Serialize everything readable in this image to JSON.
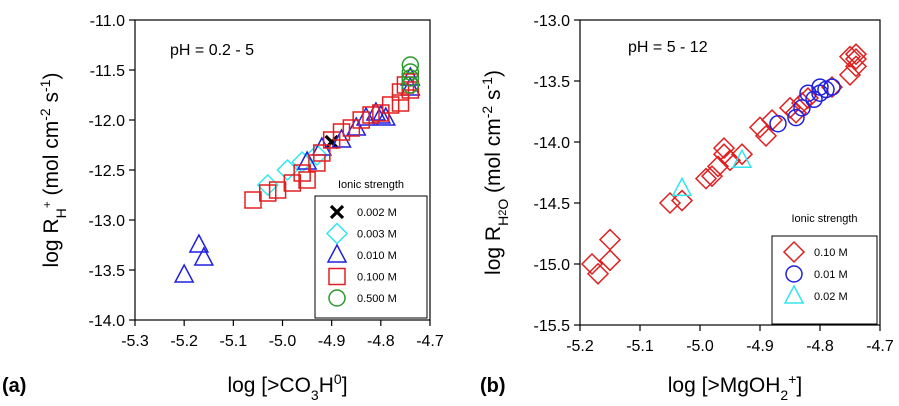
{
  "chart_data": [
    {
      "type": "scatter",
      "panel_label": "(a)",
      "annotation": "pH = 0.2 - 5",
      "xlabel": {
        "pre": "log [>CO",
        "sub1": "3",
        "mid": "H",
        "sup1": "0",
        "post": "]"
      },
      "ylabel": {
        "pre": "log R",
        "sub1": "H",
        "sup1": "+",
        "mid": " (mol cm",
        "sup2": "-2",
        "mid2": " s",
        "sup3": "-1",
        "post": ")"
      },
      "xlim": [
        -5.3,
        -4.7
      ],
      "ylim": [
        -14.0,
        -11.0
      ],
      "xticks": [
        "-5.3",
        "-5.2",
        "-5.1",
        "-5.0",
        "-4.9",
        "-4.8",
        "-4.7"
      ],
      "yticks": [
        "-14.0",
        "-13.5",
        "-13.0",
        "-12.5",
        "-12.0",
        "-11.5",
        "-11.0"
      ],
      "legend_title": "Ionic strength",
      "legend_position": "bottom-right",
      "series": [
        {
          "name": "0.002 M",
          "marker": "x",
          "color": "#000000",
          "points": [
            [
              -4.9,
              -12.22
            ]
          ]
        },
        {
          "name": "0.003 M",
          "marker": "diamond",
          "color": "#33e5ee",
          "points": [
            [
              -5.03,
              -12.65
            ],
            [
              -4.99,
              -12.5
            ],
            [
              -4.96,
              -12.42
            ],
            [
              -4.93,
              -12.35
            ]
          ]
        },
        {
          "name": "0.010 M",
          "marker": "triangle",
          "color": "#2020e0",
          "points": [
            [
              -5.2,
              -13.55
            ],
            [
              -5.17,
              -13.25
            ],
            [
              -5.16,
              -13.38
            ],
            [
              -4.95,
              -12.42
            ],
            [
              -4.92,
              -12.28
            ],
            [
              -4.88,
              -12.2
            ],
            [
              -4.85,
              -12.08
            ],
            [
              -4.83,
              -11.98
            ],
            [
              -4.81,
              -11.93
            ],
            [
              -4.8,
              -11.96
            ],
            [
              -4.79,
              -11.98
            ],
            [
              -4.74,
              -11.58
            ],
            [
              -4.74,
              -11.68
            ]
          ]
        },
        {
          "name": "0.100 M",
          "marker": "square",
          "color": "#e02020",
          "points": [
            [
              -5.06,
              -12.8
            ],
            [
              -5.03,
              -12.73
            ],
            [
              -5.01,
              -12.7
            ],
            [
              -4.98,
              -12.63
            ],
            [
              -4.96,
              -12.53
            ],
            [
              -4.95,
              -12.6
            ],
            [
              -4.93,
              -12.43
            ],
            [
              -4.92,
              -12.33
            ],
            [
              -4.9,
              -12.2
            ],
            [
              -4.88,
              -12.12
            ],
            [
              -4.86,
              -12.08
            ],
            [
              -4.84,
              -12.0
            ],
            [
              -4.82,
              -11.95
            ],
            [
              -4.8,
              -11.93
            ],
            [
              -4.78,
              -11.85
            ],
            [
              -4.76,
              -11.83
            ],
            [
              -4.76,
              -11.72
            ],
            [
              -4.75,
              -11.65
            ],
            [
              -4.74,
              -11.7
            ],
            [
              -4.74,
              -11.62
            ]
          ]
        },
        {
          "name": "0.500 M",
          "marker": "circle",
          "color": "#2a9a2a",
          "points": [
            [
              -4.74,
              -11.45
            ],
            [
              -4.74,
              -11.52
            ],
            [
              -4.74,
              -11.58
            ],
            [
              -4.74,
              -11.65
            ]
          ]
        }
      ]
    },
    {
      "type": "scatter",
      "panel_label": "(b)",
      "annotation": "pH = 5 - 12",
      "xlabel": {
        "pre": "log [>MgOH",
        "sub1": "2",
        "sup1": "+",
        "post": "]"
      },
      "ylabel": {
        "pre": "log R",
        "sub1": "H",
        "sub2": "2",
        "sub3": "O",
        "mid": " (mol cm",
        "sup2": "-2",
        "mid2": " s",
        "sup3": "-1",
        "post": ")"
      },
      "xlim": [
        -5.2,
        -4.7
      ],
      "ylim": [
        -15.5,
        -13.0
      ],
      "xticks": [
        "-5.2",
        "-5.1",
        "-5.0",
        "-4.9",
        "-4.8",
        "-4.7"
      ],
      "yticks": [
        "-15.5",
        "-15.0",
        "-14.5",
        "-14.0",
        "-13.5",
        "-13.0"
      ],
      "legend_title": "Ionic strength",
      "legend_position": "bottom-right",
      "series": [
        {
          "name": "0.10 M",
          "marker": "diamond",
          "color": "#e02020",
          "points": [
            [
              -5.18,
              -15.0
            ],
            [
              -5.17,
              -15.08
            ],
            [
              -5.15,
              -14.97
            ],
            [
              -5.15,
              -14.8
            ],
            [
              -5.05,
              -14.5
            ],
            [
              -5.03,
              -14.48
            ],
            [
              -4.99,
              -14.3
            ],
            [
              -4.98,
              -14.28
            ],
            [
              -4.97,
              -14.2
            ],
            [
              -4.96,
              -14.1
            ],
            [
              -4.95,
              -14.15
            ],
            [
              -4.96,
              -14.05
            ],
            [
              -4.93,
              -14.1
            ],
            [
              -4.9,
              -13.88
            ],
            [
              -4.89,
              -13.95
            ],
            [
              -4.88,
              -13.82
            ],
            [
              -4.85,
              -13.72
            ],
            [
              -4.84,
              -13.76
            ],
            [
              -4.83,
              -13.68
            ],
            [
              -4.82,
              -13.64
            ],
            [
              -4.78,
              -13.55
            ],
            [
              -4.75,
              -13.45
            ],
            [
              -4.74,
              -13.38
            ],
            [
              -4.74,
              -13.32
            ],
            [
              -4.75,
              -13.3
            ],
            [
              -4.74,
              -13.28
            ]
          ]
        },
        {
          "name": "0.01 M",
          "marker": "circle",
          "color": "#2020e0",
          "points": [
            [
              -4.87,
              -13.85
            ],
            [
              -4.84,
              -13.8
            ],
            [
              -4.83,
              -13.72
            ],
            [
              -4.82,
              -13.6
            ],
            [
              -4.81,
              -13.65
            ],
            [
              -4.8,
              -13.6
            ],
            [
              -4.8,
              -13.55
            ],
            [
              -4.79,
              -13.57
            ],
            [
              -4.78,
              -13.55
            ]
          ]
        },
        {
          "name": "0.02 M",
          "marker": "triangle",
          "color": "#33e5ee",
          "points": [
            [
              -5.03,
              -14.38
            ],
            [
              -4.93,
              -14.15
            ]
          ]
        }
      ]
    }
  ]
}
